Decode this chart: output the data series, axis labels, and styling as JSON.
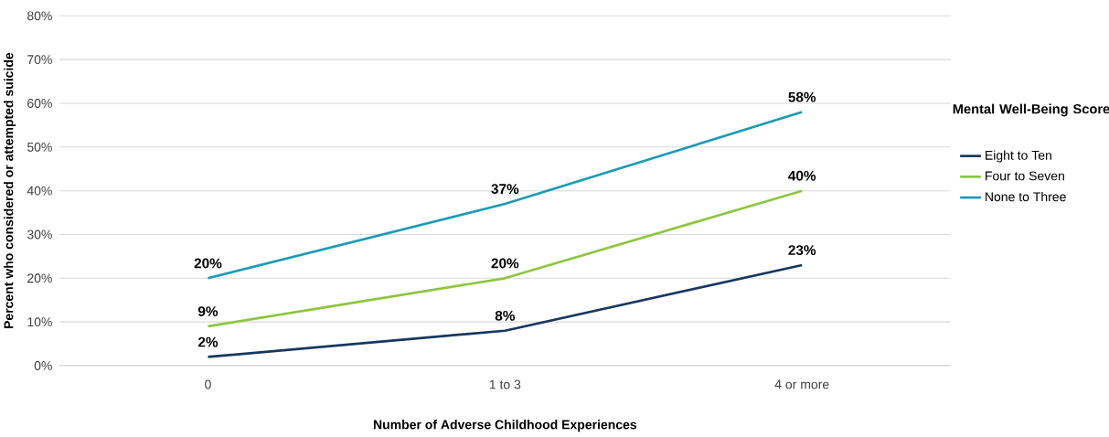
{
  "chart_data": {
    "type": "line",
    "xlabel": "Number of Adverse Childhood Experiences",
    "ylabel": "Percent who considered or attempted suicide",
    "legend_title": "Mental Well-Being Score",
    "categories": [
      "0",
      "1 to 3",
      "4 or more"
    ],
    "series": [
      {
        "name": "Eight to Ten",
        "color": "#17375e",
        "values": [
          2,
          8,
          23
        ],
        "value_labels": [
          "2%",
          "8%",
          "23%"
        ]
      },
      {
        "name": "Four to Seven",
        "color": "#8dc63f",
        "values": [
          9,
          20,
          40
        ],
        "value_labels": [
          "9%",
          "20%",
          "40%"
        ]
      },
      {
        "name": "None to Three",
        "color": "#1a9bb5",
        "values": [
          20,
          37,
          58
        ],
        "value_labels": [
          "20%",
          "37%",
          "58%"
        ]
      }
    ],
    "ylim": [
      0,
      80
    ],
    "yticks": [
      {
        "value": 0,
        "label": "0%"
      },
      {
        "value": 10,
        "label": "10%"
      },
      {
        "value": 20,
        "label": "20%"
      },
      {
        "value": 30,
        "label": "30%"
      },
      {
        "value": 40,
        "label": "40%"
      },
      {
        "value": 50,
        "label": "50%"
      },
      {
        "value": 60,
        "label": "60%"
      },
      {
        "value": 70,
        "label": "70%"
      },
      {
        "value": 80,
        "label": "80%"
      }
    ],
    "grid": "y",
    "legend": "right"
  }
}
